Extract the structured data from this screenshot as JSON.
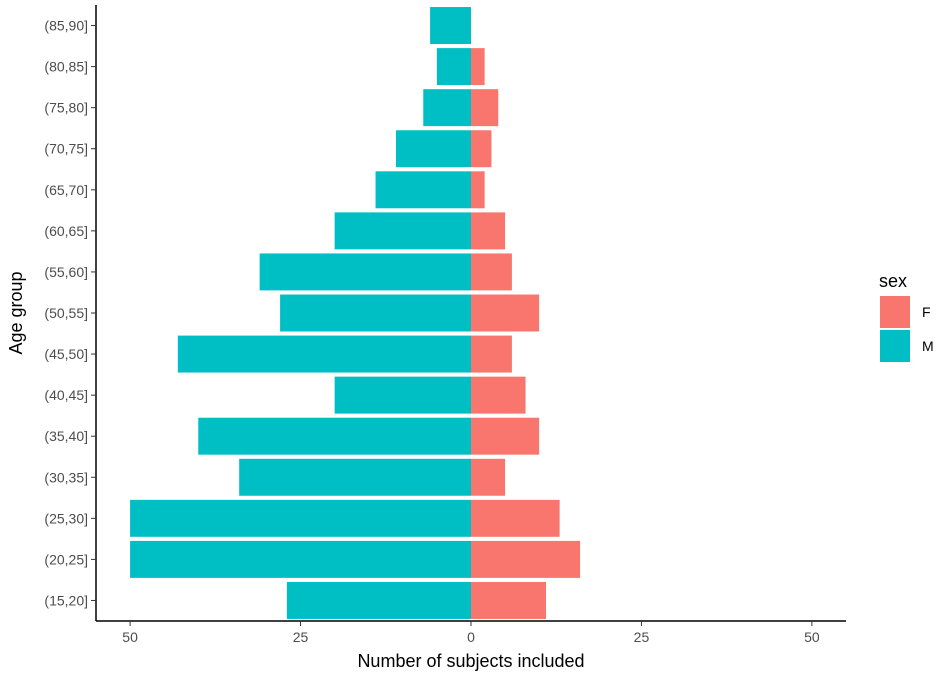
{
  "chart_data": {
    "type": "bar",
    "orientation": "horizontal",
    "layout": "population-pyramid",
    "categories": [
      "(15,20]",
      "(20,25]",
      "(25,30]",
      "(30,35]",
      "(35,40]",
      "(40,45]",
      "(45,50]",
      "(50,55]",
      "(55,60]",
      "(60,65]",
      "(65,70]",
      "(70,75]",
      "(75,80]",
      "(80,85]",
      "(85,90]"
    ],
    "series": [
      {
        "name": "F",
        "color": "#F8766D",
        "direction": "positive",
        "values": [
          11,
          16,
          13,
          5,
          10,
          8,
          6,
          10,
          6,
          5,
          2,
          3,
          4,
          2,
          0
        ]
      },
      {
        "name": "M",
        "color": "#00BFC4",
        "direction": "negative",
        "values": [
          27,
          50,
          50,
          34,
          40,
          20,
          43,
          28,
          31,
          20,
          14,
          11,
          7,
          5,
          6
        ]
      }
    ],
    "xlabel": "Number of subjects included",
    "ylabel": "Age group",
    "xlim": [
      -55,
      55
    ],
    "x_ticks": [
      -50,
      -25,
      0,
      25,
      50
    ],
    "x_tick_labels": [
      "50",
      "25",
      "0",
      "25",
      "50"
    ],
    "legend": {
      "title": "sex",
      "position": "right"
    },
    "grid": false
  }
}
